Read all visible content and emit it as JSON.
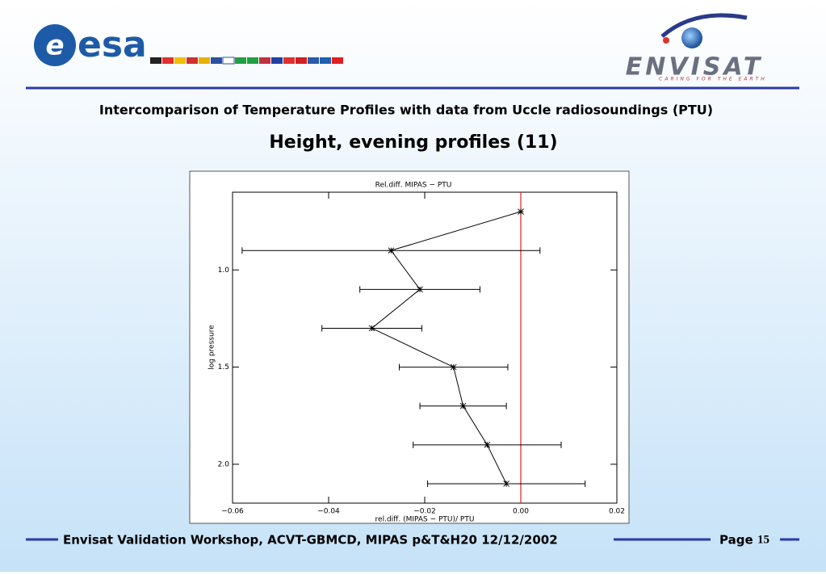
{
  "slide": {
    "logo_left": "esa",
    "logo_right": "ENVISAT",
    "logo_right_tagline": "CARING FOR THE EARTH",
    "title": "Intercomparison of Temperature Profiles with data from Uccle radiosoundings (PTU)",
    "subtitle": "Height, evening profiles (11)",
    "footer": "Envisat Validation Workshop, ACVT-GBMCD,  MIPAS p&T&H20 12/12/2002",
    "page_label": "Page",
    "page_number": "15"
  },
  "chart_data": {
    "type": "errorbar",
    "title": "Rel.diff. MIPAS − PTU",
    "x_label": "rel.diff. (MIPAS − PTU)/ PTU",
    "y_label": "log pressure",
    "xlim": [
      -0.06,
      0.02
    ],
    "xticks": [
      {
        "value": -0.06,
        "label": "−0.06"
      },
      {
        "value": -0.04,
        "label": "−0.04"
      },
      {
        "value": -0.02,
        "label": "−0.02"
      },
      {
        "value": 0,
        "label": "0.00"
      },
      {
        "value": 0.02,
        "label": "0.02"
      }
    ],
    "ylim": [
      2.2,
      0.6
    ],
    "yticks": [
      {
        "value": 1,
        "label": "1.0"
      },
      {
        "value": 1.5,
        "label": "1.5"
      },
      {
        "value": 2,
        "label": "2.0"
      }
    ],
    "reference_line": {
      "x": 0,
      "color": "#e02020"
    },
    "series": [
      {
        "color": "#000000",
        "x": [
          0,
          -0.027,
          -0.021,
          -0.031,
          -0.014,
          -0.012,
          -0.007,
          -0.003
        ],
        "values": [
          0.7,
          0.9,
          1.1,
          1.3,
          1.5,
          1.7,
          1.9,
          2.1
        ],
        "x_errors": [
          null,
          0.031,
          0.0125,
          0.0104,
          0.0113,
          0.009,
          0.0154,
          0.0164
        ]
      }
    ]
  }
}
